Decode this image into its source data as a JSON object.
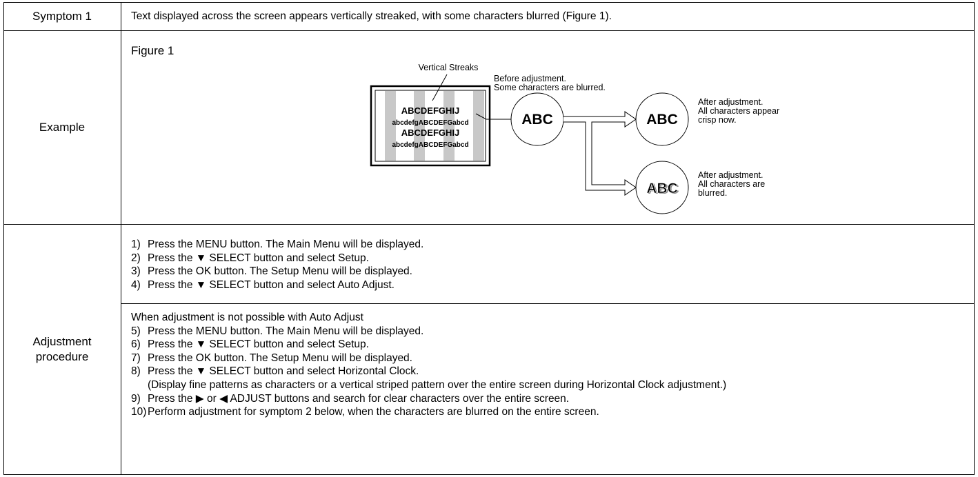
{
  "symptom": {
    "label": "Symptom 1",
    "text": "Text displayed across the screen appears vertically streaked, with some characters blurred (Figure 1)."
  },
  "example": {
    "label": "Example",
    "figure": {
      "title": "Figure 1",
      "streaks_label": "Vertical Streaks",
      "before": [
        "Before adjustment.",
        "Some characters are blurred."
      ],
      "screen_lines": [
        "ABCDEFGHIJ",
        "abcdefgABCDEFGabcd",
        "ABCDEFGHIJ",
        "abcdefgABCDEFGabcd"
      ],
      "circles": [
        "ABC",
        "ABC",
        "ABC"
      ],
      "after_crisp": [
        "After adjustment.",
        "All characters appear",
        "crisp now."
      ],
      "after_blurred": [
        "After adjustment.",
        "All characters are",
        "blurred."
      ]
    }
  },
  "procedure": {
    "label": [
      "Adjustment",
      "procedure"
    ],
    "steps_a": [
      {
        "num": "1)",
        "text": "Press the MENU button. The Main Menu will be displayed."
      },
      {
        "num": "2)",
        "text": "Press the ▼ SELECT button and select Setup."
      },
      {
        "num": "3)",
        "text": "Press the OK button. The Setup Menu will be displayed."
      },
      {
        "num": "4)",
        "text": "Press the ▼ SELECT button and select Auto Adjust."
      }
    ],
    "heading_b": "When adjustment is not possible with Auto Adjust",
    "steps_b": [
      {
        "num": "5)",
        "text": "Press the MENU button. The Main Menu will be displayed."
      },
      {
        "num": "6)",
        "text": "Press the ▼ SELECT button and select Setup."
      },
      {
        "num": "7)",
        "text": "Press the OK button. The Setup Menu will be displayed."
      },
      {
        "num": "8)",
        "text": "Press the ▼ SELECT button and select Horizontal Clock."
      },
      {
        "note": "(Display fine patterns as characters or a vertical striped pattern over the entire screen during Horizontal Clock adjustment.)"
      },
      {
        "num": "9)",
        "text": "Press the ▶ or ◀ ADJUST buttons and search for clear characters over the entire screen."
      },
      {
        "num": "10)",
        "text": "Perform adjustment for symptom 2 below, when the characters are blurred on the entire screen."
      }
    ]
  }
}
